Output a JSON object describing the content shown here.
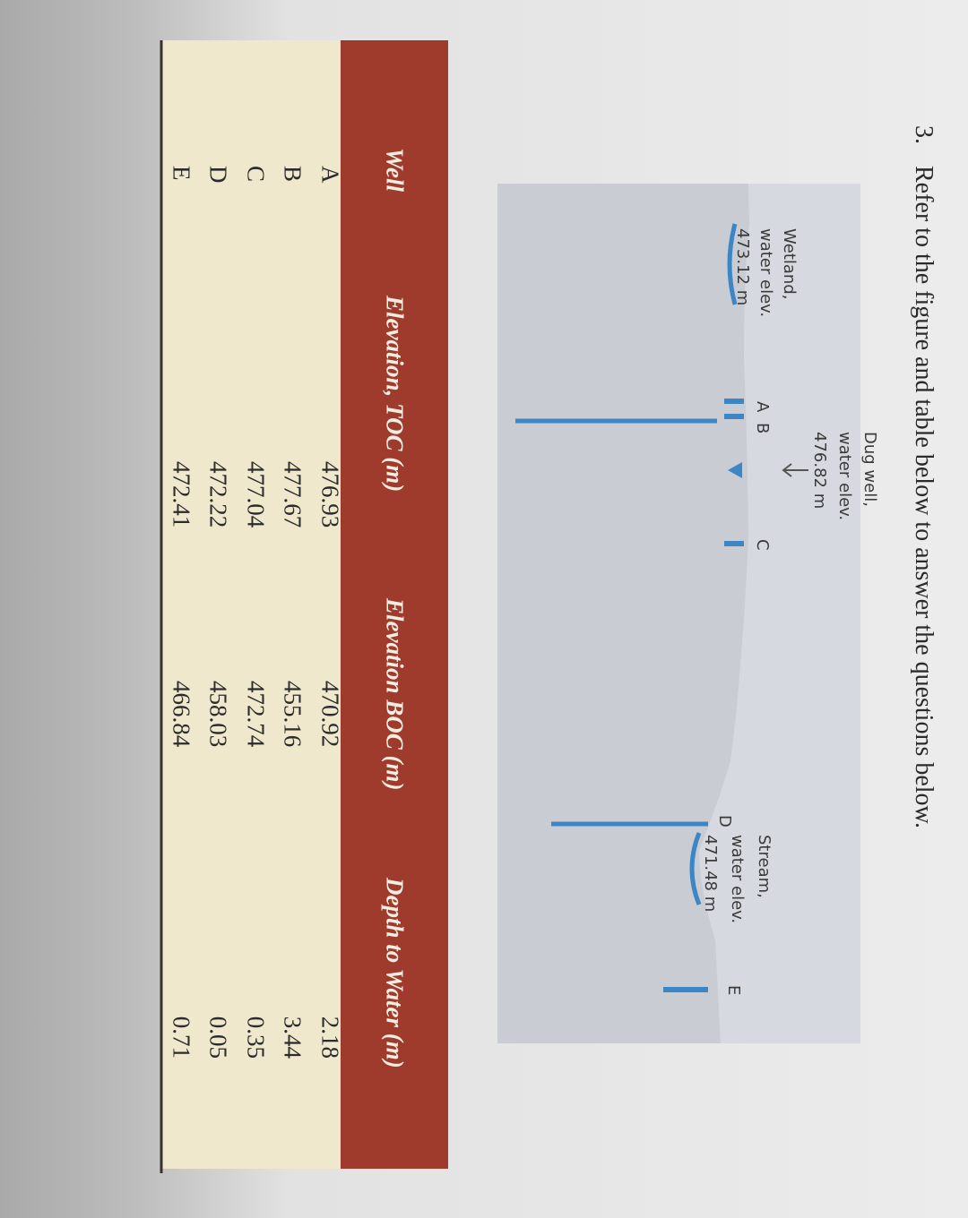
{
  "question": {
    "number": "3.",
    "text": "Refer to the figure and table below to answer the questions below."
  },
  "figure": {
    "dug_well": [
      "Dug well,",
      "water elev.",
      "476.82 m"
    ],
    "wetland": [
      "Wetland,",
      "water elev.",
      "473.12 m"
    ],
    "stream": [
      "Stream,",
      "water elev.",
      "471.48 m"
    ],
    "wells": [
      "A",
      "B",
      "C",
      "D",
      "E"
    ]
  },
  "table": {
    "headers": [
      "Well",
      "Elevation, TOC (m)",
      "Elevation BOC (m)",
      "Depth to Water (m)"
    ],
    "rows": [
      [
        "A",
        "476.93",
        "470.92",
        "2.18"
      ],
      [
        "B",
        "477.67",
        "455.16",
        "3.44"
      ],
      [
        "C",
        "477.04",
        "472.74",
        "0.35"
      ],
      [
        "D",
        "472.22",
        "458.03",
        "0.05"
      ],
      [
        "E",
        "472.41",
        "466.84",
        "0.71"
      ]
    ]
  }
}
